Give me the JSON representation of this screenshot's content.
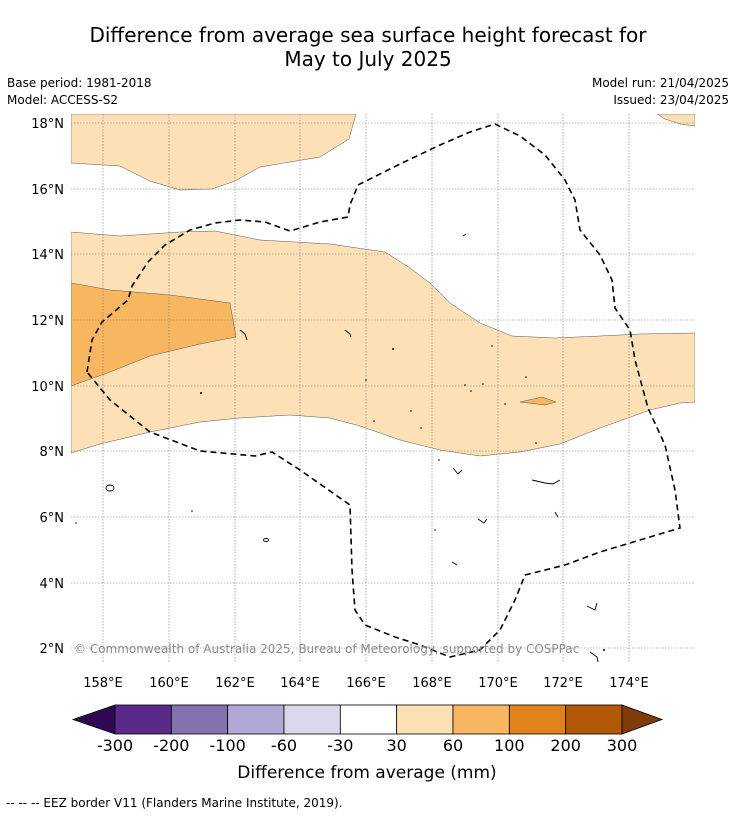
{
  "title": {
    "line1": "Difference from average sea surface height forecast for",
    "line2": "May to July 2025"
  },
  "meta": {
    "base_period": "Base period: 1981-2018",
    "model": "Model: ACCESS-S2",
    "model_run": "Model run: 21/04/2025",
    "issued": "Issued: 23/04/2025"
  },
  "map": {
    "lat_labels": [
      "2°N",
      "4°N",
      "6°N",
      "8°N",
      "10°N",
      "12°N",
      "14°N",
      "16°N",
      "18°N"
    ],
    "lon_labels": [
      "158°E",
      "160°E",
      "162°E",
      "164°E",
      "166°E",
      "168°E",
      "170°E",
      "172°E",
      "174°E"
    ],
    "copyright": "© Commonwealth of Australia 2025, Bureau of Meteorology, supported by COSPPac"
  },
  "colorbar": {
    "ticks": [
      "-300",
      "-200",
      "-100",
      "-60",
      "-30",
      "30",
      "60",
      "100",
      "200",
      "300"
    ],
    "colors": [
      "#2e0854",
      "#5a2a8a",
      "#8472b0",
      "#b1a9d3",
      "#d9d8ec",
      "#ffffff",
      "#fde0b6",
      "#f9b661",
      "#e2821c",
      "#b35806",
      "#7f3b08"
    ],
    "label": "Difference from average (mm)"
  },
  "footnote": "--  --  -- EEZ border V11 (Flanders Marine Institute, 2019)."
}
